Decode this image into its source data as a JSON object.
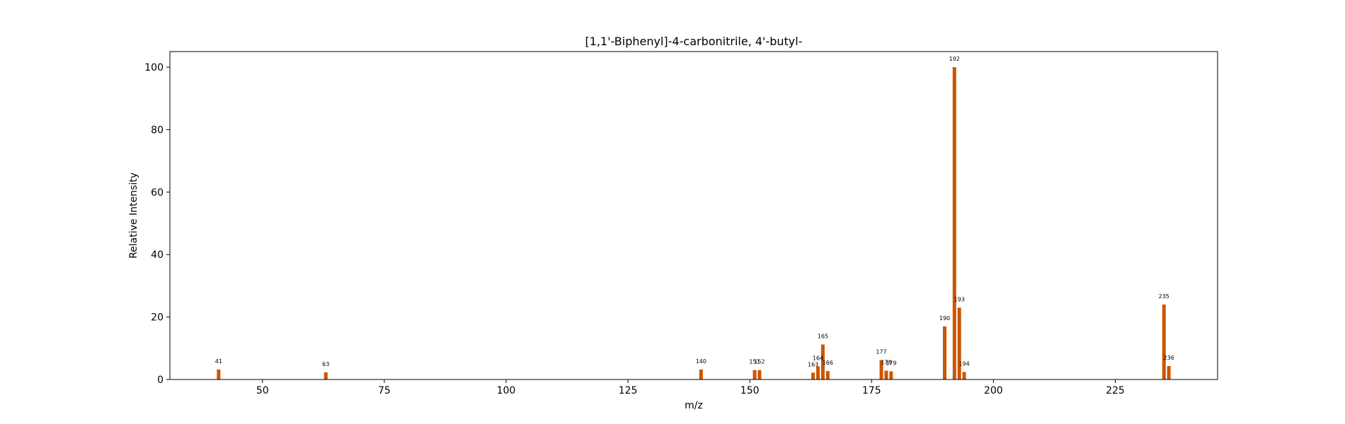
{
  "chart_data": {
    "type": "bar",
    "title": "[1,1'-Biphenyl]-4-carbonitrile, 4'-butyl-",
    "xlabel": "m/z",
    "ylabel": "Relative Intensity",
    "xlim": [
      31,
      246
    ],
    "ylim": [
      0,
      105
    ],
    "xticks": [
      50,
      75,
      100,
      125,
      150,
      175,
      200,
      225
    ],
    "yticks": [
      0,
      20,
      40,
      60,
      80,
      100
    ],
    "grid": false,
    "bar_color": "#cc5500",
    "peaks": [
      {
        "x": 41,
        "y": 3.2,
        "label": "41"
      },
      {
        "x": 63,
        "y": 2.3,
        "label": "63"
      },
      {
        "x": 140,
        "y": 3.2,
        "label": "140"
      },
      {
        "x": 151,
        "y": 3.0,
        "label": "151"
      },
      {
        "x": 152,
        "y": 3.0,
        "label": "152"
      },
      {
        "x": 163,
        "y": 2.2,
        "label": "163"
      },
      {
        "x": 164,
        "y": 4.2,
        "label": "164"
      },
      {
        "x": 165,
        "y": 11.2,
        "label": "165"
      },
      {
        "x": 166,
        "y": 2.7,
        "label": "166"
      },
      {
        "x": 177,
        "y": 6.2,
        "label": "177"
      },
      {
        "x": 178,
        "y": 2.8,
        "label": "178"
      },
      {
        "x": 179,
        "y": 2.6,
        "label": "179"
      },
      {
        "x": 190,
        "y": 17.0,
        "label": "190"
      },
      {
        "x": 192,
        "y": 100.0,
        "label": "192"
      },
      {
        "x": 193,
        "y": 23.0,
        "label": "193"
      },
      {
        "x": 194,
        "y": 2.4,
        "label": "194"
      },
      {
        "x": 235,
        "y": 24.0,
        "label": "235"
      },
      {
        "x": 236,
        "y": 4.3,
        "label": "236"
      }
    ]
  }
}
